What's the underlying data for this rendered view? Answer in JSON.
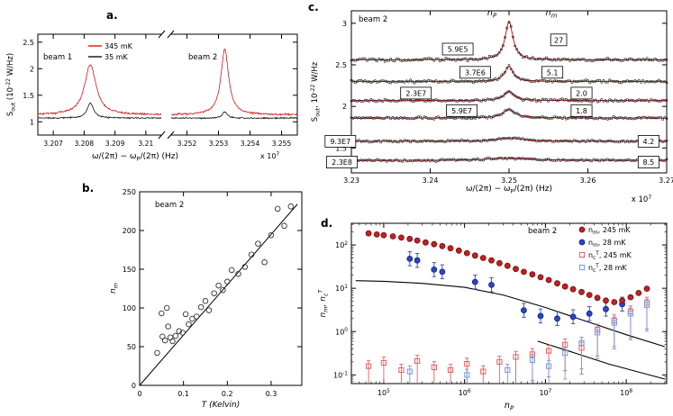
{
  "chart_data": [
    {
      "id": "a",
      "type": "line",
      "panel_label": "a.",
      "ylabel": "S_{out} (10^{-22} W/Hz)",
      "xlabel": "ω/(2π) − ω_{P}/(2π) (Hz)",
      "scale_note": "x 10^{7}",
      "ylim": [
        0.75,
        2.65
      ],
      "yticks": [
        1,
        1.5,
        2,
        2.5
      ],
      "legend": [
        {
          "label": "345 mK",
          "color": "#cc1a1a"
        },
        {
          "label": "35 mK",
          "color": "#111111"
        }
      ],
      "segments": [
        {
          "label": "beam 1",
          "xlim": [
            3.2065,
            3.2105
          ],
          "xticks": [
            3.207,
            3.208,
            3.209,
            3.21
          ],
          "hot": {
            "baseline": 1.13,
            "center": 3.2082,
            "amp": 0.95,
            "fwhm": 0.00045,
            "noise": 0.018
          },
          "cold": {
            "baseline": 1.07,
            "center": 3.2082,
            "amp": 0.28,
            "fwhm": 0.00025,
            "noise": 0.012
          }
        },
        {
          "label": "beam 2",
          "xlim": [
            3.2515,
            3.2555
          ],
          "xticks": [
            3.252,
            3.253,
            3.254,
            3.255
          ],
          "hot": {
            "baseline": 1.13,
            "center": 3.2532,
            "amp": 1.23,
            "fwhm": 0.0003,
            "noise": 0.018
          },
          "cold": {
            "baseline": 1.07,
            "center": 3.2532,
            "amp": 0.12,
            "fwhm": 0.00018,
            "noise": 0.012
          }
        }
      ]
    },
    {
      "id": "b",
      "type": "scatter",
      "panel_label": "b.",
      "annotation": "beam 2",
      "xlabel": "T (Kelvin)",
      "ylabel": "n_{m}",
      "xlim": [
        0,
        0.37
      ],
      "ylim": [
        0,
        250
      ],
      "xticks": [
        0,
        0.1,
        0.2,
        0.3
      ],
      "yticks": [
        0,
        50,
        100,
        150,
        200,
        250
      ],
      "points": [
        [
          0.04,
          42
        ],
        [
          0.05,
          93
        ],
        [
          0.052,
          63
        ],
        [
          0.058,
          58
        ],
        [
          0.062,
          100
        ],
        [
          0.065,
          76
        ],
        [
          0.07,
          62
        ],
        [
          0.075,
          57
        ],
        [
          0.082,
          64
        ],
        [
          0.09,
          70
        ],
        [
          0.098,
          68
        ],
        [
          0.105,
          92
        ],
        [
          0.112,
          79
        ],
        [
          0.12,
          86
        ],
        [
          0.13,
          89
        ],
        [
          0.14,
          101
        ],
        [
          0.15,
          109
        ],
        [
          0.158,
          97
        ],
        [
          0.17,
          119
        ],
        [
          0.18,
          129
        ],
        [
          0.19,
          123
        ],
        [
          0.2,
          134
        ],
        [
          0.21,
          149
        ],
        [
          0.225,
          144
        ],
        [
          0.24,
          153
        ],
        [
          0.255,
          169
        ],
        [
          0.27,
          183
        ],
        [
          0.285,
          159
        ],
        [
          0.3,
          194
        ],
        [
          0.315,
          228
        ],
        [
          0.33,
          206
        ],
        [
          0.345,
          231
        ]
      ],
      "fit_line": [
        [
          0,
          0
        ],
        [
          0.36,
          234
        ]
      ]
    },
    {
      "id": "c",
      "type": "line",
      "panel_label": "c.",
      "annotation": "beam 2",
      "headers": {
        "np": "n_{P}",
        "nm": "n_{m}"
      },
      "ylabel": "S_{out}, 10^{-22} W/Hz",
      "xlabel": "ω/(2π) − ω_{P}/(2π)  (Hz)",
      "scale_note": "x 10^{7}",
      "xlim": [
        3.23,
        3.27
      ],
      "ylim": [
        1.2,
        3.15
      ],
      "xticks": [
        3.23,
        3.24,
        3.25,
        3.26,
        3.27
      ],
      "yticks": [
        1.5,
        2,
        2.5,
        3
      ],
      "center": 3.25,
      "traces": [
        {
          "n_P": "5.9E5",
          "n_m": "27",
          "baseline": 2.56,
          "amp": 0.46,
          "fwhm": 0.0012,
          "noise": 0.018,
          "np_box": [
            3.2435,
            2.69
          ],
          "nm_box": [
            3.2563,
            2.8
          ]
        },
        {
          "n_P": "3.7E6",
          "n_m": "5.1",
          "baseline": 2.3,
          "amp": 0.18,
          "fwhm": 0.0013,
          "noise": 0.016,
          "np_box": [
            3.2457,
            2.41
          ],
          "nm_box": [
            3.2555,
            2.41
          ]
        },
        {
          "n_P": "2.3E7",
          "n_m": "2.0",
          "baseline": 2.07,
          "amp": 0.11,
          "fwhm": 0.0016,
          "noise": 0.015,
          "np_box": [
            3.2382,
            2.16
          ],
          "nm_box": [
            3.2592,
            2.16
          ]
        },
        {
          "n_P": "5.9E7",
          "n_m": "1.8",
          "baseline": 1.86,
          "amp": 0.1,
          "fwhm": 0.002,
          "noise": 0.014,
          "np_box": [
            3.244,
            1.95
          ],
          "nm_box": [
            3.2592,
            1.95
          ]
        },
        {
          "n_P": "9.3E7",
          "n_m": "4.2",
          "baseline": 1.58,
          "amp": 0.04,
          "fwhm": 0.004,
          "noise": 0.012,
          "np_box": [
            3.2286,
            1.58
          ],
          "nm_box": [
            3.2677,
            1.58
          ]
        },
        {
          "n_P": "2.3E8",
          "n_m": "8.5",
          "baseline": 1.35,
          "amp": 0.03,
          "fwhm": 0.006,
          "noise": 0.012,
          "np_box": [
            3.2288,
            1.33
          ],
          "nm_box": [
            3.2677,
            1.33
          ]
        }
      ]
    },
    {
      "id": "d",
      "type": "scatter",
      "panel_label": "d.",
      "annotation": "beam 2",
      "xlabel": "n_{P}",
      "ylabel": "n_{m}, n_{c}^{T}",
      "xticks_exp": [
        5,
        6,
        7,
        8
      ],
      "yticks_exp": [
        -1,
        0,
        1,
        2
      ],
      "xlim_exp": [
        4.6,
        8.5
      ],
      "ylim_exp": [
        -1.2,
        2.5
      ],
      "series": [
        {
          "name": "n_{m}, 245 mK",
          "marker": "circle",
          "fill": "#c42020",
          "edge": "#6e0d0d",
          "color": "#c42020",
          "points": [
            [
              65000.0,
              185
            ],
            [
              82000.0,
              175
            ],
            [
              100000.0,
              168
            ],
            [
              130000.0,
              158
            ],
            [
              165000.0,
              148
            ],
            [
              210000.0,
              138
            ],
            [
              260000.0,
              127
            ],
            [
              330000.0,
              114
            ],
            [
              420000.0,
              104
            ],
            [
              530000.0,
              94
            ],
            [
              670000.0,
              84
            ],
            [
              850000.0,
              74
            ],
            [
              1070000.0,
              65
            ],
            [
              1350000.0,
              57
            ],
            [
              1700000.0,
              50
            ],
            [
              2150000.0,
              44
            ],
            [
              2700000.0,
              38
            ],
            [
              3400000.0,
              33
            ],
            [
              4300000.0,
              28
            ],
            [
              5400000.0,
              24
            ],
            [
              6900000.0,
              21
            ],
            [
              8700000.0,
              18
            ],
            [
              11000000.0,
              15.5
            ],
            [
              14000000.0,
              13
            ],
            [
              17500000.0,
              11
            ],
            [
              22000000.0,
              9.5
            ],
            [
              28000000.0,
              8.2
            ],
            [
              35000000.0,
              7
            ],
            [
              44000000.0,
              6
            ],
            [
              56000000.0,
              5.2
            ],
            [
              71000000.0,
              4.8
            ],
            [
              89000000.0,
              5.2
            ],
            [
              113000000.0,
              6.2
            ],
            [
              142000000.0,
              7.8
            ],
            [
              180000000.0,
              9.8
            ]
          ]
        },
        {
          "name": "n_{m}, 28 mK",
          "marker": "circle",
          "fill": "#2848c8",
          "edge": "#101f70",
          "color": "#2848c8",
          "err_up": 1.45,
          "err_dn": 1.45,
          "points": [
            [
              210000.0,
              48
            ],
            [
              260000.0,
              44
            ],
            [
              420000.0,
              27
            ],
            [
              530000.0,
              24
            ],
            [
              1350000.0,
              14
            ],
            [
              2150000.0,
              12
            ],
            [
              5400000.0,
              3.1
            ],
            [
              8700000.0,
              2.3
            ],
            [
              14000000.0,
              2.0
            ],
            [
              22000000.0,
              2.2
            ],
            [
              35000000.0,
              2.6
            ],
            [
              56000000.0,
              3.3
            ],
            [
              89000000.0,
              4.3
            ]
          ]
        },
        {
          "name": "n_{c}^{T}, 245 mK",
          "marker": "square",
          "color": "#e06060",
          "err_up": 1.35,
          "err_dn": 4,
          "points": [
            [
              65000.0,
              0.16
            ],
            [
              100000.0,
              0.19
            ],
            [
              165000.0,
              0.13
            ],
            [
              260000.0,
              0.21
            ],
            [
              420000.0,
              0.15
            ],
            [
              670000.0,
              0.13
            ],
            [
              1070000.0,
              0.18
            ],
            [
              1700000.0,
              0.12
            ],
            [
              2700000.0,
              0.2
            ],
            [
              4300000.0,
              0.26
            ],
            [
              6900000.0,
              0.3
            ],
            [
              11000000.0,
              0.36
            ],
            [
              17500000.0,
              0.5
            ],
            [
              28000000.0,
              0.42
            ],
            [
              44000000.0,
              1.1
            ],
            [
              71000000.0,
              1.8
            ],
            [
              113000000.0,
              2.9
            ],
            [
              180000000.0,
              4.6
            ]
          ]
        },
        {
          "name": "n_{c}^{T}, 28 mK",
          "marker": "square",
          "color": "#7898e0",
          "err_up": 1.35,
          "err_dn": 4,
          "points": [
            [
              210000.0,
              0.12
            ],
            [
              1070000.0,
              0.1
            ],
            [
              3400000.0,
              0.13
            ],
            [
              6900000.0,
              0.22
            ],
            [
              11000000.0,
              0.16
            ],
            [
              17500000.0,
              0.32
            ],
            [
              28000000.0,
              0.55
            ],
            [
              44000000.0,
              0.95
            ],
            [
              71000000.0,
              1.6
            ],
            [
              113000000.0,
              2.6
            ],
            [
              180000000.0,
              4.1
            ]
          ]
        }
      ],
      "curves": [
        [
          [
            45000.0,
            15
          ],
          [
            100000.0,
            14.5
          ],
          [
            300000.0,
            13
          ],
          [
            1000000.0,
            10.5
          ],
          [
            3000000.0,
            7
          ],
          [
            10000000.0,
            3.6
          ],
          [
            30000000.0,
            1.8
          ],
          [
            100000000.0,
            0.85
          ],
          [
            300000000.0,
            0.45
          ]
        ],
        [
          [
            8000000.0,
            0.6
          ],
          [
            20000000.0,
            0.35
          ],
          [
            60000000.0,
            0.18
          ],
          [
            300000000.0,
            0.08
          ]
        ]
      ]
    }
  ]
}
